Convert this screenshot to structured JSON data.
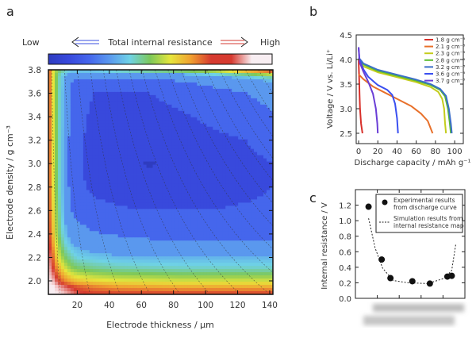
{
  "panel_labels": {
    "a": "a",
    "b": "b",
    "c": "c"
  },
  "colors": {
    "levels": [
      "#2e3cc0",
      "#3849dc",
      "#4566ec",
      "#5a98ee",
      "#6fd2e6",
      "#7cc85a",
      "#e6e63c",
      "#f0a030",
      "#d63a30",
      "#f8eef2"
    ],
    "frame": "#111111"
  },
  "chart_data": [
    {
      "type": "heatmap",
      "panel": "a",
      "colorbar": {
        "low_label": "Low",
        "title": "Total internal resistance",
        "high_label": "High"
      },
      "xlabel": "Electrode thickness / μm",
      "ylabel": "Electrode density / g cm⁻³",
      "xlim": [
        2,
        142
      ],
      "ylim": [
        1.885,
        3.8
      ],
      "xticks": [
        "20",
        "40",
        "60",
        "80",
        "100",
        "120",
        "140"
      ],
      "yticks": [
        "2.0",
        "2.2",
        "2.4",
        "2.6",
        "2.8",
        "3.0",
        "3.2",
        "3.4",
        "3.6",
        "3.8"
      ],
      "x": [
        2,
        5,
        8,
        12,
        16,
        20,
        30,
        45,
        65,
        85,
        105,
        125,
        142
      ],
      "y": [
        3.8,
        3.75,
        3.7,
        3.6,
        3.4,
        3.2,
        3.0,
        2.8,
        2.6,
        2.4,
        2.3,
        2.2,
        2.1,
        2.0,
        1.95,
        1.885
      ],
      "resistance_level": [
        [
          8,
          6,
          5,
          4.5,
          4,
          4,
          4,
          4.5,
          5,
          5.5,
          6,
          7.5,
          8.5
        ],
        [
          8,
          6,
          4.5,
          3.5,
          3,
          3,
          3,
          3,
          3,
          3,
          3.5,
          4,
          5
        ],
        [
          8,
          6,
          4.5,
          3.5,
          2.5,
          2.2,
          2,
          2,
          2.2,
          2.5,
          2.8,
          3,
          3.5
        ],
        [
          8,
          6,
          4.5,
          3.3,
          2.3,
          2,
          1.5,
          1.4,
          1.5,
          1.8,
          2.2,
          2.5,
          2.8
        ],
        [
          8,
          6,
          4.5,
          3.3,
          2.2,
          1.8,
          1.3,
          1.2,
          1.2,
          1.4,
          1.7,
          2.1,
          2.4
        ],
        [
          8,
          6,
          4.5,
          3.2,
          2.2,
          1.7,
          1.2,
          1.05,
          0.95,
          1.1,
          1.3,
          1.5,
          1.8
        ],
        [
          8,
          6,
          4.5,
          3.2,
          2.2,
          1.7,
          1.2,
          0.9,
          0.4,
          0.8,
          1.1,
          1.3,
          1.5
        ],
        [
          8,
          6,
          4.5,
          3.2,
          2.2,
          1.7,
          1.3,
          1.1,
          1,
          1.1,
          1.2,
          1.3,
          1.5
        ],
        [
          8,
          6.2,
          4.7,
          3.4,
          2.5,
          2.1,
          1.8,
          1.6,
          1.5,
          1.5,
          1.5,
          1.6,
          1.7
        ],
        [
          8.2,
          6.5,
          5,
          3.8,
          3.2,
          2.9,
          2.6,
          2.4,
          2.2,
          2.1,
          2.1,
          2.1,
          2.1
        ],
        [
          8.4,
          7,
          5.5,
          4.3,
          3.7,
          3.4,
          3.1,
          3,
          2.9,
          2.9,
          2.9,
          2.9,
          2.9
        ],
        [
          8.6,
          7.5,
          6,
          5,
          4.4,
          4,
          3.8,
          3.6,
          3.5,
          3.5,
          3.5,
          3.5,
          3.5
        ],
        [
          8.8,
          8,
          7,
          6,
          5.3,
          5,
          4.7,
          4.5,
          4.4,
          4.3,
          4.3,
          4.3,
          4.3
        ],
        [
          9,
          8.7,
          8,
          7.3,
          6.8,
          6.5,
          6.2,
          6,
          5.9,
          5.8,
          5.8,
          5.8,
          5.8
        ],
        [
          9,
          9,
          8.7,
          8.3,
          8,
          7.7,
          7.3,
          7,
          6.9,
          6.8,
          6.8,
          6.8,
          6.8
        ],
        [
          9,
          9,
          9,
          8.8,
          8.5,
          8.2,
          8,
          8,
          8,
          8,
          8,
          8,
          8
        ]
      ],
      "grid": false
    },
    {
      "type": "line",
      "panel": "b",
      "xlabel": "Discharge capacity / mAh g⁻¹",
      "ylabel": "Voltage / V vs. Li/Li⁺",
      "xlim": [
        -2.5,
        109
      ],
      "ylim": [
        2.29,
        4.5
      ],
      "xticks": [
        "0",
        "20",
        "40",
        "60",
        "80",
        "100"
      ],
      "yticks": [
        "2.5",
        "3.0",
        "3.5",
        "4.0",
        "4.5"
      ],
      "legend": "top-right",
      "series": [
        {
          "name": "1.8 g cm⁻³",
          "color": "#d8302a",
          "points": [
            [
              0,
              4.0
            ],
            [
              0.5,
              3.7
            ],
            [
              1,
              3.3
            ],
            [
              1.5,
              3.0
            ],
            [
              2.5,
              2.7
            ],
            [
              4,
              2.5
            ]
          ]
        },
        {
          "name": "2.1 g cm⁻³",
          "color": "#e8702a",
          "points": [
            [
              0,
              3.7
            ],
            [
              5,
              3.6
            ],
            [
              15,
              3.45
            ],
            [
              25,
              3.35
            ],
            [
              40,
              3.2
            ],
            [
              55,
              3.05
            ],
            [
              65,
              2.9
            ],
            [
              72,
              2.75
            ],
            [
              77,
              2.5
            ]
          ]
        },
        {
          "name": "2.3 g cm⁻³",
          "color": "#c4cc1c",
          "points": [
            [
              0,
              4.0
            ],
            [
              5,
              3.86
            ],
            [
              20,
              3.74
            ],
            [
              40,
              3.64
            ],
            [
              60,
              3.54
            ],
            [
              75,
              3.44
            ],
            [
              83,
              3.34
            ],
            [
              87,
              3.2
            ],
            [
              89,
              3.0
            ],
            [
              90,
              2.7
            ],
            [
              91,
              2.5
            ]
          ]
        },
        {
          "name": "2.8 g cm⁻³",
          "color": "#5cbc30",
          "points": [
            [
              0,
              4.02
            ],
            [
              5,
              3.9
            ],
            [
              20,
              3.77
            ],
            [
              40,
              3.67
            ],
            [
              60,
              3.57
            ],
            [
              75,
              3.48
            ],
            [
              85,
              3.38
            ],
            [
              90,
              3.25
            ],
            [
              93,
              3.0
            ],
            [
              95,
              2.7
            ],
            [
              96,
              2.5
            ]
          ]
        },
        {
          "name": "3.2 g cm⁻³",
          "color": "#3a6ec8",
          "points": [
            [
              0,
              4.04
            ],
            [
              5,
              3.92
            ],
            [
              20,
              3.79
            ],
            [
              40,
              3.69
            ],
            [
              60,
              3.59
            ],
            [
              75,
              3.5
            ],
            [
              85,
              3.4
            ],
            [
              91,
              3.26
            ],
            [
              94,
              3.0
            ],
            [
              96,
              2.7
            ],
            [
              97,
              2.5
            ]
          ]
        },
        {
          "name": "3.6 g cm⁻³",
          "color": "#3a4ff0",
          "points": [
            [
              0,
              4.25
            ],
            [
              1,
              4.0
            ],
            [
              5,
              3.8
            ],
            [
              10,
              3.65
            ],
            [
              20,
              3.48
            ],
            [
              30,
              3.38
            ],
            [
              35,
              3.28
            ],
            [
              38,
              3.1
            ],
            [
              40,
              2.8
            ],
            [
              41,
              2.5
            ]
          ]
        },
        {
          "name": "3.7 g cm⁻³",
          "color": "#6a3ed6",
          "points": [
            [
              0,
              4.25
            ],
            [
              1,
              3.95
            ],
            [
              5,
              3.75
            ],
            [
              10,
              3.55
            ],
            [
              15,
              3.3
            ],
            [
              18,
              3.0
            ],
            [
              19.5,
              2.7
            ],
            [
              20,
              2.5
            ]
          ]
        }
      ]
    },
    {
      "type": "scatter",
      "panel": "c",
      "ylabel": "Internal resistance / V",
      "xlim": [
        1.5,
        4.0
      ],
      "ylim": [
        0,
        1.4
      ],
      "yticks": [
        "0.0",
        "0.2",
        "0.4",
        "0.6",
        "0.8",
        "1.0",
        "1.2"
      ],
      "legend": "top-right",
      "series": [
        {
          "name": "Experimental results from discharge curve",
          "legend_lines": [
            "Experimental results",
            "from discharge curve"
          ],
          "style": "markers",
          "x": [
            1.8,
            2.1,
            2.3,
            2.8,
            3.2,
            3.6,
            3.7
          ],
          "y": [
            1.18,
            0.5,
            0.26,
            0.22,
            0.19,
            0.28,
            0.29
          ]
        },
        {
          "name": "Simulation results from internal resistance map",
          "legend_lines": [
            "Simulation results from",
            "internal resistance map"
          ],
          "style": "dashed",
          "x": [
            1.8,
            1.95,
            2.12,
            2.36,
            2.7,
            3.15,
            3.54,
            3.7,
            3.79
          ],
          "y": [
            1.03,
            0.65,
            0.39,
            0.23,
            0.2,
            0.19,
            0.26,
            0.36,
            0.69
          ]
        }
      ]
    }
  ]
}
